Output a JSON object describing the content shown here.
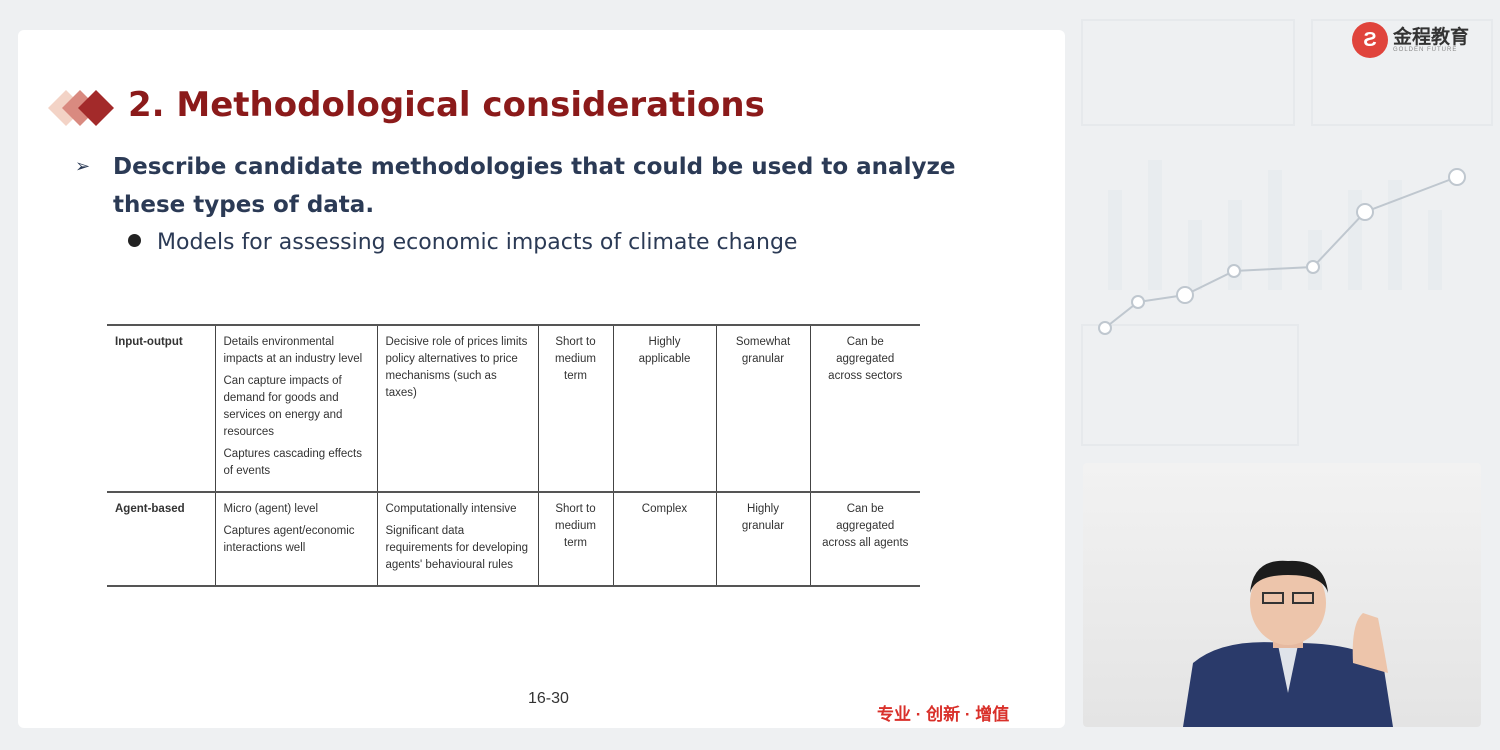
{
  "slide": {
    "title": "2. Methodological considerations",
    "bullet1": "Describe candidate methodologies that could be used to analyze these types of data.",
    "bullet2": "Models for assessing economic impacts of climate change",
    "table": {
      "rows": [
        {
          "name": "Input-output",
          "col1": [
            "Details environmental impacts at an industry level",
            "Can capture impacts of demand for goods and services on energy and resources",
            "Captures cascading effects of events"
          ],
          "col2": [
            "Decisive role of prices limits policy alternatives to price mechanisms (such as taxes)"
          ],
          "col3": "Short to medium term",
          "col4": "Highly applicable",
          "col5": "Somewhat granular",
          "col6": "Can be aggregated across sectors"
        },
        {
          "name": "Agent-based",
          "col1": [
            "Micro (agent) level",
            "Captures agent/economic interactions well"
          ],
          "col2": [
            "Computationally intensive",
            "Significant data requirements for developing agents' behavioural rules"
          ],
          "col3": "Short to medium term",
          "col4": "Complex",
          "col5": "Highly granular",
          "col6": "Can be aggregated across all agents"
        }
      ]
    },
    "page_number": "16-30",
    "slogan": "专业 · 创新 · 增值"
  },
  "brand": {
    "name": "金程教育",
    "sub": "GOLDEN FUTURE",
    "accent": "#8b1a1a",
    "logo_color": "#e0443c"
  },
  "icons": {
    "bullet1": "arrow-right-icon",
    "bullet2": "bullet-dot-icon"
  }
}
